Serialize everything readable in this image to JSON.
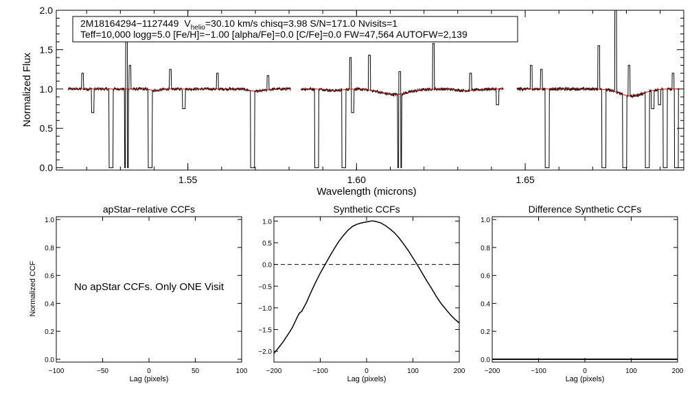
{
  "chart_data": [
    {
      "type": "line",
      "panel": "spectrum",
      "ylabel": "Normalized Flux",
      "xlabel": "Wavelength (microns)",
      "xlim": [
        1.511,
        1.697
      ],
      "ylim": [
        -0.03,
        2.0
      ],
      "xticks": [
        "1.55",
        "1.60",
        "1.65"
      ],
      "xtick_values": [
        1.55,
        1.6,
        1.65
      ],
      "yticks": [
        "0.0",
        "0.5",
        "1.0",
        "1.5",
        "2.0"
      ],
      "ytick_values": [
        0.0,
        0.5,
        1.0,
        1.5,
        2.0
      ],
      "info_box": {
        "star_id": "2M18164294−1127449",
        "v_label": "V",
        "v_sub": "helio",
        "v_rest": "=30.10 km/s  chisq=3.98  S/N=171.0  Nvisits=1",
        "line2": "Teff=10,000 logg=5.0 [Fe/H]=−1.00 [alpha/Fe]=0.0 [C/Fe]=0.0 FW=47,564 AUTOFW=2,139"
      },
      "chips": [
        [
          1.5145,
          1.5805
        ],
        [
          1.5835,
          1.6435
        ],
        [
          1.6475,
          1.6955
        ]
      ],
      "dips": [
        [
          1.5272,
          0.0,
          0.0006
        ],
        [
          1.5318,
          0.0,
          0.0006
        ],
        [
          1.5388,
          0.0,
          0.0006
        ],
        [
          1.5692,
          0.0,
          0.0006
        ],
        [
          1.5882,
          0.0,
          0.0006
        ],
        [
          1.5962,
          0.0,
          0.0006
        ],
        [
          1.6128,
          0.0,
          0.0006
        ],
        [
          1.6565,
          0.0,
          0.0006
        ],
        [
          1.6733,
          0.0,
          0.0006
        ],
        [
          1.6795,
          0.0,
          0.0006
        ],
        [
          1.6862,
          0.0,
          0.0006
        ],
        [
          1.6915,
          0.0,
          0.0006
        ],
        [
          1.6948,
          0.0,
          0.0006
        ],
        [
          1.5218,
          0.7,
          0.0004
        ],
        [
          1.5488,
          0.75,
          0.0004
        ],
        [
          1.5988,
          0.7,
          0.0004
        ],
        [
          1.6418,
          0.8,
          0.0004
        ],
        [
          1.6878,
          0.75,
          0.0004
        ],
        [
          1.6898,
          0.8,
          0.0004
        ]
      ],
      "spikes": [
        [
          1.5318,
          1.65
        ],
        [
          1.5448,
          1.25
        ],
        [
          1.5738,
          1.17
        ],
        [
          1.5188,
          1.2
        ],
        [
          1.5588,
          1.2
        ],
        [
          1.5982,
          1.4
        ],
        [
          1.6038,
          1.43
        ],
        [
          1.6128,
          1.22
        ],
        [
          1.6228,
          1.58
        ],
        [
          1.6338,
          1.2
        ],
        [
          1.6518,
          1.3
        ],
        [
          1.6548,
          1.25
        ],
        [
          1.6718,
          1.55
        ],
        [
          1.6768,
          2.0
        ],
        [
          1.6808,
          1.3
        ],
        [
          1.6938,
          1.2
        ],
        [
          1.5328,
          1.3
        ]
      ],
      "broad_features": [
        [
          1.5705,
          0.03,
          0.003
        ],
        [
          1.6112,
          0.07,
          0.006
        ],
        [
          1.5935,
          0.02,
          0.003
        ],
        [
          1.6325,
          0.02,
          0.004
        ],
        [
          1.6815,
          0.09,
          0.005
        ],
        [
          1.5405,
          0.02,
          0.002
        ]
      ],
      "colors": {
        "spectrum": "#000000",
        "model": "#cc0000"
      }
    },
    {
      "type": "line",
      "panel": "apstar-ccf",
      "title": "apStar−relative CCFs",
      "xlabel": "Lag (pixels)",
      "ylabel": "Normalized CCF",
      "xlim": [
        -100,
        100
      ],
      "ylim": [
        -0.02,
        1.02
      ],
      "xticks": [
        "−100",
        "−50",
        "0",
        "50",
        "100"
      ],
      "xtick_values": [
        -100,
        -50,
        0,
        50,
        100
      ],
      "yticks": [
        "0.0",
        "0.2",
        "0.4",
        "0.6",
        "0.8",
        "1.0"
      ],
      "ytick_values": [
        0.0,
        0.2,
        0.4,
        0.6,
        0.8,
        1.0
      ],
      "annotation": "No apStar CCFs.  Only ONE Visit",
      "series": []
    },
    {
      "type": "line",
      "panel": "synthetic-ccf",
      "title": "Synthetic CCFs",
      "xlabel": "Lag (pixels)",
      "ylabel": "",
      "xlim": [
        -200,
        200
      ],
      "ylim": [
        -2.25,
        1.1
      ],
      "xticks": [
        "−200",
        "−100",
        "0",
        "100",
        "200"
      ],
      "xtick_values": [
        -200,
        -100,
        0,
        100,
        200
      ],
      "yticks": [
        "−2.0",
        "−1.5",
        "−1.0",
        "−0.5",
        "0.0",
        "0.5",
        "1.0"
      ],
      "ytick_values": [
        -2.0,
        -1.5,
        -1.0,
        -0.5,
        0.0,
        0.5,
        1.0
      ],
      "hline": 0.0,
      "series": [
        {
          "name": "Synthetic CCF",
          "x": [
            -200,
            -190,
            -180,
            -170,
            -160,
            -150,
            -145,
            -140,
            -130,
            -120,
            -110,
            -100,
            -90,
            -80,
            -70,
            -60,
            -50,
            -40,
            -30,
            -20,
            -10,
            0,
            10,
            15,
            20,
            30,
            40,
            50,
            60,
            70,
            80,
            90,
            100,
            110,
            120,
            130,
            140,
            150,
            160,
            170,
            180,
            190,
            200
          ],
          "values": [
            -2.05,
            -1.92,
            -1.78,
            -1.62,
            -1.45,
            -1.22,
            -1.12,
            -1.08,
            -0.88,
            -0.64,
            -0.41,
            -0.2,
            -0.01,
            0.18,
            0.36,
            0.53,
            0.67,
            0.79,
            0.88,
            0.93,
            0.96,
            0.98,
            1.0,
            1.0,
            0.99,
            0.96,
            0.9,
            0.82,
            0.73,
            0.61,
            0.47,
            0.32,
            0.15,
            -0.02,
            -0.2,
            -0.38,
            -0.55,
            -0.73,
            -0.89,
            -1.02,
            -1.15,
            -1.26,
            -1.35
          ]
        }
      ]
    },
    {
      "type": "line",
      "panel": "difference-ccf",
      "title": "Difference Synthetic CCFs",
      "xlabel": "Lag (pixels)",
      "ylabel": "",
      "xlim": [
        -200,
        200
      ],
      "ylim": [
        -0.02,
        1.02
      ],
      "xticks": [
        "−200",
        "−100",
        "0",
        "100",
        "200"
      ],
      "xtick_values": [
        -200,
        -100,
        0,
        100,
        200
      ],
      "yticks": [
        "0.0",
        "0.2",
        "0.4",
        "0.6",
        "0.8",
        "1.0"
      ],
      "ytick_values": [
        0.0,
        0.2,
        0.4,
        0.6,
        0.8,
        1.0
      ],
      "series": [
        {
          "name": "Difference CCF",
          "x": [
            -200,
            200
          ],
          "values": [
            0.0,
            0.0
          ]
        }
      ]
    }
  ]
}
